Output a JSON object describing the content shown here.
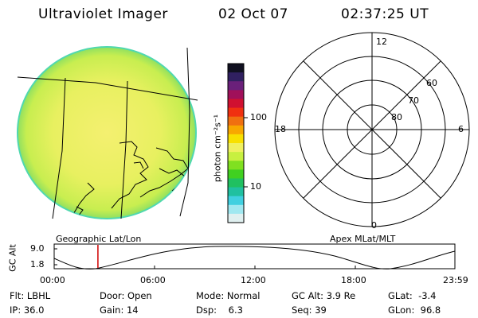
{
  "header": {
    "title": "Ultraviolet Imager",
    "date": "02 Oct 07",
    "time": "02:37:25 UT"
  },
  "imager_panel": {
    "caption": "Geographic Lat/Lon",
    "disk_color": "#e8f060",
    "rim_color": "#50d8b0"
  },
  "colorbar": {
    "unit_label": "photon cm⁻²s⁻¹",
    "ticks": [
      "100",
      "10"
    ],
    "colors": [
      "#101020",
      "#302060",
      "#6a207a",
      "#a0105a",
      "#d01030",
      "#f03010",
      "#f07010",
      "#f8a800",
      "#f8e000",
      "#f0f060",
      "#c8f040",
      "#80e020",
      "#40d020",
      "#20c060",
      "#20c0a0",
      "#40d0e0",
      "#a0e8f0",
      "#e0f0f0"
    ]
  },
  "polar_plot": {
    "caption": "Apex MLat/MLT",
    "mlt_labels": {
      "top": "12",
      "left": "18",
      "right": "6",
      "bottom": "0"
    },
    "lat_labels": [
      "60",
      "70",
      "80"
    ]
  },
  "orbit_plot": {
    "y_axis_label": "GC Alt",
    "y_ticks": [
      "9.0",
      "1.8"
    ],
    "x_ticks": [
      "00:00",
      "06:00",
      "12:00",
      "18:00",
      "23:59"
    ],
    "marker_time_hours": 2.62,
    "marker_color": "#d00000"
  },
  "info": {
    "row1": [
      {
        "label": "Flt:",
        "value": "LBHL"
      },
      {
        "label": "Door:",
        "value": "Open"
      },
      {
        "label": "Mode:",
        "value": "Normal"
      },
      {
        "label": "GC Alt:",
        "value": "3.9 Re"
      },
      {
        "label": "GLat:",
        "value": "-3.4"
      }
    ],
    "row2": [
      {
        "label": "IP:",
        "value": "36.0"
      },
      {
        "label": "Gain:",
        "value": "14"
      },
      {
        "label": "Dsp:",
        "value": "6.3"
      },
      {
        "label": "Seq:",
        "value": "39"
      },
      {
        "label": "GLon:",
        "value": "96.8"
      }
    ]
  }
}
